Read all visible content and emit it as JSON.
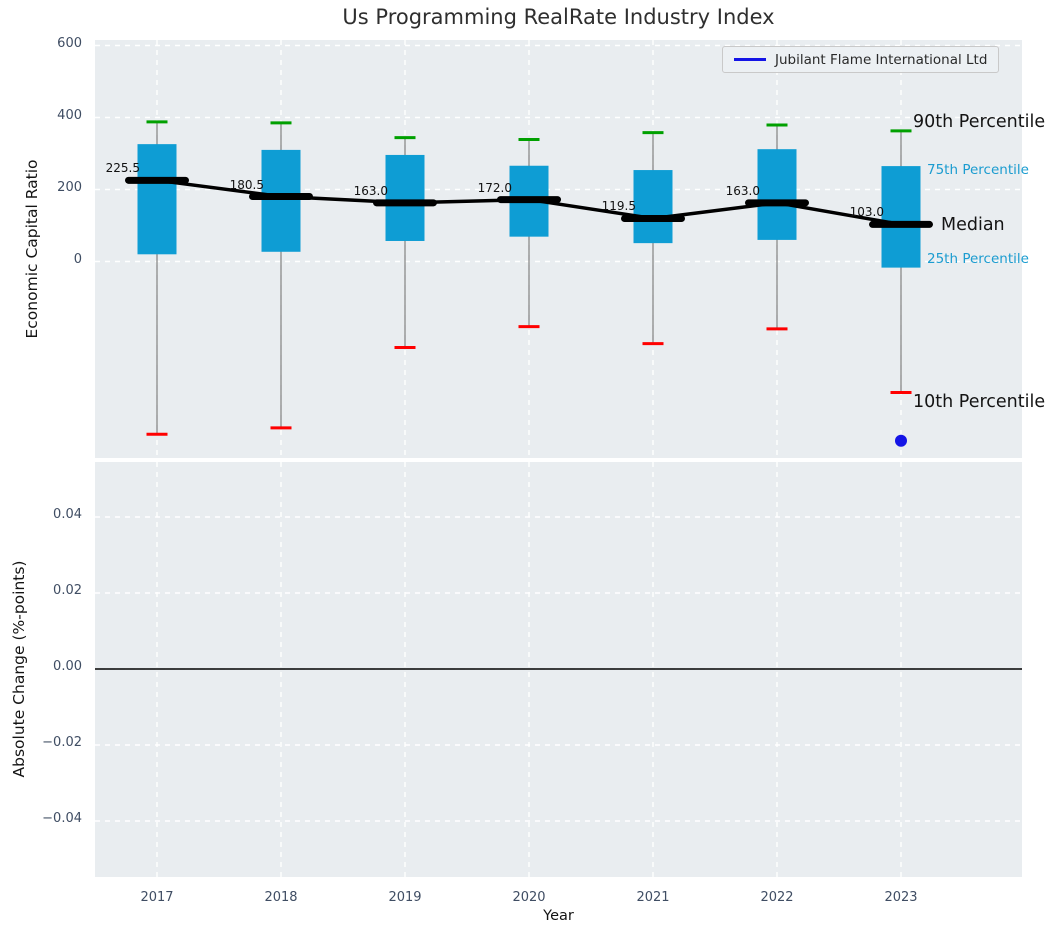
{
  "title": "Us Programming RealRate Industry Index",
  "legend": {
    "series_label": "Jubilant Flame International Ltd"
  },
  "axes": {
    "top": {
      "ylabel": "Economic Capital Ratio"
    },
    "bottom": {
      "ylabel": "Absolute Change (%-points)",
      "xlabel": "Year"
    }
  },
  "annotations": {
    "p90": "90th Percentile",
    "p75": "75th Percentile",
    "median": "Median",
    "p25": "25th Percentile",
    "p10": "10th Percentile"
  },
  "chart_data": {
    "type": "boxplot",
    "categories": [
      "2017",
      "2018",
      "2019",
      "2020",
      "2021",
      "2022",
      "2023"
    ],
    "panels": [
      {
        "name": "industry_percentile_boxes",
        "ylabel": "Economic Capital Ratio",
        "ylim": [
          -546,
          615
        ],
        "yticks": [
          600,
          400,
          200,
          0
        ],
        "ytick_labels": [
          "600",
          "400",
          "200",
          "0"
        ],
        "grid": true,
        "series": {
          "p90": [
            388,
            385,
            344,
            339,
            358,
            379,
            363
          ],
          "p75": [
            326,
            310,
            296,
            266,
            254,
            312,
            265
          ],
          "median": [
            225.5,
            180.5,
            163.0,
            172.0,
            119.5,
            163.0,
            103.0
          ],
          "p25": [
            20,
            27,
            57,
            69,
            51,
            60,
            -17
          ],
          "p10": [
            -480,
            -462,
            -239,
            -181,
            -228,
            -187,
            -364
          ]
        },
        "median_labels": [
          "225.5",
          "180.5",
          "163.0",
          "172.0",
          "119.5",
          "163.0",
          "103.0"
        ],
        "company_series": {
          "name": "Jubilant Flame International Ltd",
          "points": [
            {
              "x": "2023",
              "y": -498
            }
          ]
        }
      },
      {
        "name": "absolute_change",
        "ylabel": "Absolute Change (%-points)",
        "ylim": [
          -0.055,
          0.055
        ],
        "yticks": [
          0.04,
          0.02,
          0.0,
          -0.02,
          -0.04
        ],
        "ytick_labels": [
          "0.04",
          "0.02",
          "0.00",
          "−0.02",
          "−0.04"
        ],
        "grid": true,
        "zero_line": 0.0,
        "series": {}
      }
    ],
    "xlabel": "Year",
    "legend_position": "upper right",
    "colors": {
      "box_fill": "#0e9dd4",
      "p90_cap": "#00a000",
      "p10_cap": "#ff0000",
      "median_line": "#000000",
      "whisker": "#7f7f7f",
      "company": "#1414e6",
      "panel_bg": "#e9edf0",
      "grid": "#ffffff",
      "percentile_text": "#1b9cd0",
      "zero_line": "#000000"
    }
  }
}
